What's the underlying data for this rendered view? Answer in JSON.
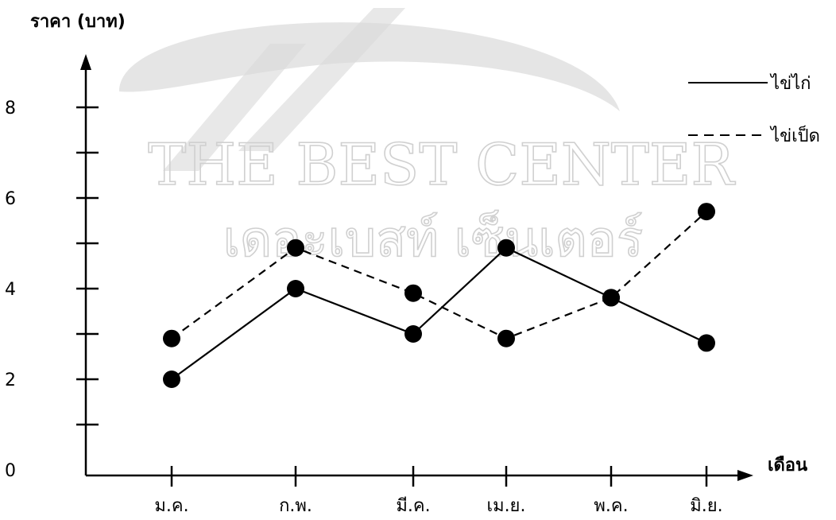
{
  "watermark": {
    "line1": "THE BEST CENTER",
    "line2": "เดอะเบสท์ เซ็นเตอร์",
    "colors": {
      "text": "#d6d6d6",
      "swoosh": "#c9c9c9"
    }
  },
  "chart_data": {
    "type": "line",
    "ylabel": "ราคา (บาท)",
    "xlabel": "เดือน",
    "categories": [
      "ม.ค.",
      "ก.พ.",
      "มี.ค.",
      "เม.ย.",
      "พ.ค.",
      "มิ.ย."
    ],
    "yticks": [
      0,
      2,
      4,
      6,
      8
    ],
    "yminor": [
      1,
      3,
      5,
      7
    ],
    "ylim": [
      0,
      9
    ],
    "grid": false,
    "legend_position": "top-right",
    "series": [
      {
        "name": "ไข่ไก่",
        "style": "solid",
        "values": [
          2,
          4,
          3,
          4.9,
          3.8,
          2.8
        ]
      },
      {
        "name": "ไข่เป็ด",
        "style": "dashed",
        "values": [
          2.9,
          4.9,
          3.9,
          2.9,
          3.8,
          5.7
        ]
      }
    ],
    "colors": {
      "line": "#000000",
      "marker": "#000000",
      "axis": "#000000"
    }
  }
}
